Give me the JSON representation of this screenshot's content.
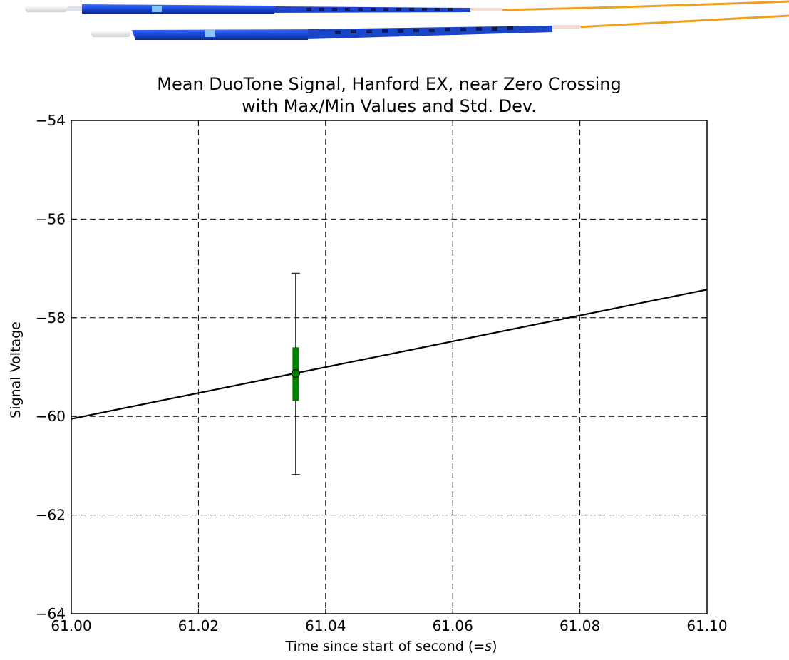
{
  "chart_data": {
    "type": "line",
    "title": [
      "Mean DuoTone Signal, Hanford EX, near Zero Crossing",
      "with Max/Min Values and Std. Dev."
    ],
    "xlabel_parts": {
      "prefix": "Time since start of second (",
      "italic": "=s",
      "suffix": ")"
    },
    "ylabel": "Signal Voltage",
    "xlim": [
      61.0,
      61.1
    ],
    "ylim": [
      -64,
      -54
    ],
    "xticks": [
      61.0,
      61.02,
      61.04,
      61.06,
      61.08,
      61.1
    ],
    "xtick_labels": [
      "61.00",
      "61.02",
      "61.04",
      "61.06",
      "61.08",
      "61.10"
    ],
    "yticks": [
      -54,
      -56,
      -58,
      -60,
      -62,
      -64
    ],
    "ytick_labels": [
      "−54",
      "−56",
      "−58",
      "−60",
      "−62",
      "−64"
    ],
    "grid": true,
    "fit_line": {
      "x": [
        61.0,
        61.1
      ],
      "y": [
        -60.05,
        -57.43
      ]
    },
    "measurement": {
      "x": 61.0353,
      "mean": -59.13,
      "std_low": -59.68,
      "std_high": -58.6,
      "min": -61.18,
      "max": -57.1
    },
    "colors": {
      "line": "#000000",
      "std_bar": "#008000",
      "range_bar": "#333333",
      "marker": "#008000"
    }
  },
  "decoration": {
    "image": "fiber-optic-cable-connectors",
    "colors": {
      "connector": "#1f4fd8",
      "cable": "#f0a020",
      "ferrule": "#e0e4ea"
    }
  }
}
